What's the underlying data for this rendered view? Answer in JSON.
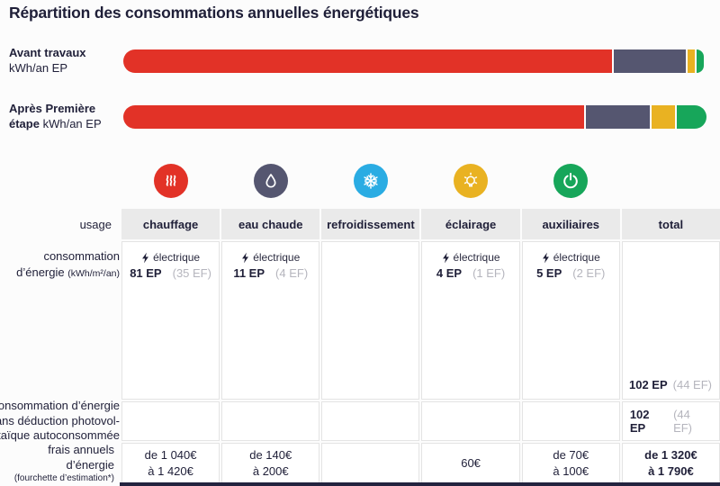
{
  "title": "Répartition des consommations annuelles énergétiques",
  "accent_colors": {
    "chauffage": "#e23227",
    "eau_chaude": "#555670",
    "refroidissement": "#2aace3",
    "eclairage": "#e9b222",
    "auxiliaires": "#17a65a",
    "text_navy": "#1f1f38",
    "ef_gray": "#b5b5bd",
    "header_bg": "#eaeaea"
  },
  "icons": [
    {
      "name": "heating-icon",
      "depicts": "heat waves",
      "color": "#e23227"
    },
    {
      "name": "hot-water-icon",
      "depicts": "water drop",
      "color": "#555670"
    },
    {
      "name": "cooling-icon",
      "depicts": "snowflake",
      "color": "#2aace3"
    },
    {
      "name": "lighting-icon",
      "depicts": "light bulb",
      "color": "#e9b222"
    },
    {
      "name": "auxiliary-icon",
      "depicts": "power button",
      "color": "#17a65a"
    }
  ],
  "bars_display": {
    "avant": {
      "line1_bold": "Avant travaux",
      "line2": "kWh/an EP"
    },
    "apres": {
      "line1_bold": "Après Première",
      "line2_bold": "étape",
      "line2_rest": "kWh/an EP"
    }
  },
  "chart_data": [
    {
      "type": "bar",
      "subtype": "horizontal-stacked",
      "title": "Répartition des consommations annuelles énergétiques",
      "unit": "kWh/an EP",
      "legend": [
        "chauffage",
        "eau chaude",
        "éclairage",
        "auxiliaires"
      ],
      "bars": [
        {
          "label": "Avant travaux",
          "segments": [
            {
              "name": "chauffage",
              "color": "#e23227",
              "pct": 84.2
            },
            {
              "name": "eau-chaude",
              "color": "#555670",
              "pct": 12.3
            },
            {
              "name": "eclairage",
              "color": "#e9b222",
              "pct": 1.3
            },
            {
              "name": "auxiliaires",
              "color": "#17a65a",
              "pct": 1.2
            }
          ]
        },
        {
          "label": "Après Première étape",
          "segments": [
            {
              "name": "chauffage",
              "color": "#e23227",
              "pct": 78.7,
              "value_ep": 81
            },
            {
              "name": "eau-chaude",
              "color": "#555670",
              "pct": 10.8,
              "value_ep": 11
            },
            {
              "name": "eclairage",
              "color": "#e9b222",
              "pct": 4.0,
              "value_ep": 4
            },
            {
              "name": "auxiliaires",
              "color": "#17a65a",
              "pct": 5.1,
              "value_ep": 5
            }
          ],
          "total_ep": 102
        }
      ]
    },
    {
      "type": "table",
      "usage_label": "usage",
      "columns": [
        "chauffage",
        "eau chaude",
        "refroidissement",
        "éclairage",
        "auxiliaires",
        "total"
      ],
      "rows": [
        {
          "label_lines": [
            "consommation",
            "d’énergie"
          ],
          "label_suffix": "(kWh/m²/an)",
          "cells": {
            "chauffage": {
              "source": "électrique",
              "ep": "81 EP",
              "ef": "(35 EF)"
            },
            "eau_chaude": {
              "source": "électrique",
              "ep": "11 EP",
              "ef": "(4 EF)"
            },
            "refroidissement": {},
            "eclairage": {
              "source": "électrique",
              "ep": "4 EP",
              "ef": "(1 EF)"
            },
            "auxiliaires": {
              "source": "électrique",
              "ep": "5 EP",
              "ef": "(2 EF)"
            },
            "total": {
              "ep": "102 EP",
              "ef": "(44 EF)"
            }
          }
        },
        {
          "label_lines": [
            "consommation d’énergie",
            "sans déduction photovol-",
            "taïque autoconsommée"
          ],
          "cells": {
            "total": {
              "ep": "102 EP",
              "ef": "(44 EF)"
            }
          }
        },
        {
          "label": "frais annuels d’énergie",
          "label_note": "(fourchette d’estimation*)",
          "cells": {
            "chauffage": [
              "de 1 040€",
              "à 1 420€"
            ],
            "eau_chaude": [
              "de 140€",
              "à 200€"
            ],
            "refroidissement": [],
            "eclairage": [
              "60€"
            ],
            "auxiliaires": [
              "de 70€",
              "à 100€"
            ],
            "total": [
              "de 1 320€",
              "à 1 790€"
            ]
          }
        }
      ]
    }
  ]
}
